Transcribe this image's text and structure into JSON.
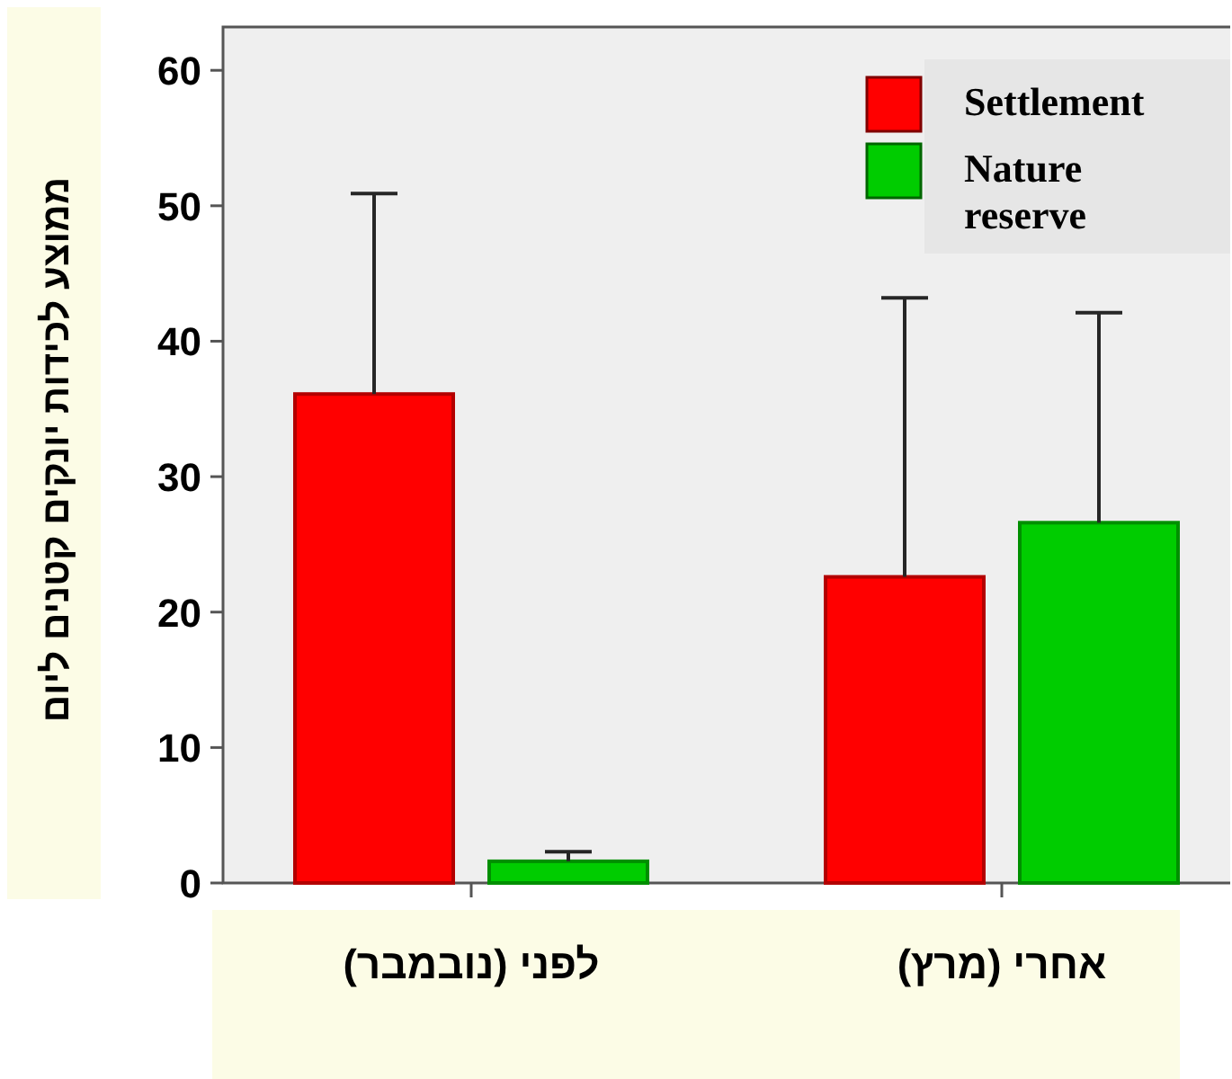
{
  "chart_data": {
    "type": "bar",
    "ylabel": "ממוצע לכידות יונקים קטנים ליום",
    "categories": [
      "לפני (נובמבר)",
      "אחרי (מרץ)"
    ],
    "series": [
      {
        "name": "Settlement",
        "color": "#ff0000",
        "values": [
          36.1,
          22.6
        ],
        "errors": [
          [
            36.1,
            50.9
          ],
          [
            22.6,
            43.2
          ]
        ]
      },
      {
        "name": "Nature reserve",
        "color": "#00cc00",
        "values": [
          1.6,
          26.6
        ],
        "errors": [
          [
            1.6,
            2.3
          ],
          [
            26.6,
            42.1
          ]
        ]
      }
    ],
    "ylim": [
      0,
      63.2
    ],
    "yticks": [
      0,
      10,
      20,
      30,
      40,
      50,
      60
    ],
    "legend": "top right",
    "grid": false
  }
}
